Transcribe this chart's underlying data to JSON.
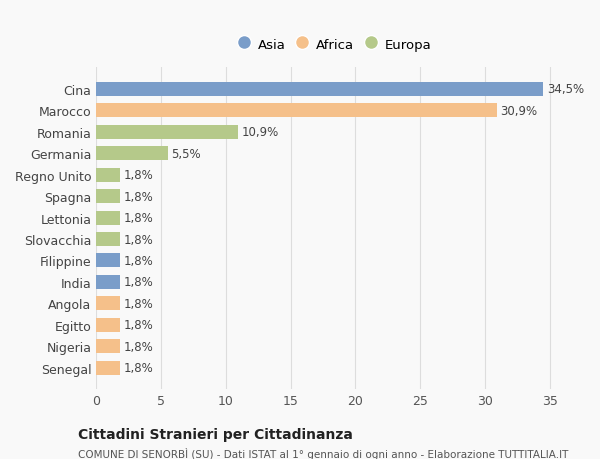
{
  "categories": [
    "Senegal",
    "Nigeria",
    "Egitto",
    "Angola",
    "India",
    "Filippine",
    "Slovacchia",
    "Lettonia",
    "Spagna",
    "Regno Unito",
    "Germania",
    "Romania",
    "Marocco",
    "Cina"
  ],
  "values": [
    1.8,
    1.8,
    1.8,
    1.8,
    1.8,
    1.8,
    1.8,
    1.8,
    1.8,
    1.8,
    5.5,
    10.9,
    30.9,
    34.5
  ],
  "colors": [
    "#F5C08A",
    "#F5C08A",
    "#F5C08A",
    "#F5C08A",
    "#7A9DC9",
    "#7A9DC9",
    "#B5C98A",
    "#B5C98A",
    "#B5C98A",
    "#B5C98A",
    "#B5C98A",
    "#B5C98A",
    "#F5C08A",
    "#7A9DC9"
  ],
  "labels": [
    "1,8%",
    "1,8%",
    "1,8%",
    "1,8%",
    "1,8%",
    "1,8%",
    "1,8%",
    "1,8%",
    "1,8%",
    "1,8%",
    "5,5%",
    "10,9%",
    "30,9%",
    "34,5%"
  ],
  "legend": [
    {
      "label": "Asia",
      "color": "#7A9DC9"
    },
    {
      "label": "Africa",
      "color": "#F5C08A"
    },
    {
      "label": "Europa",
      "color": "#B5C98A"
    }
  ],
  "title": "Cittadini Stranieri per Cittadinanza",
  "subtitle": "COMUNE DI SENORBÌ (SU) - Dati ISTAT al 1° gennaio di ogni anno - Elaborazione TUTTITALIA.IT",
  "xlim": [
    0,
    37
  ],
  "xticks": [
    0,
    5,
    10,
    15,
    20,
    25,
    30,
    35
  ],
  "background_color": "#f9f9f9",
  "grid_color": "#dddddd",
  "bar_height": 0.65
}
